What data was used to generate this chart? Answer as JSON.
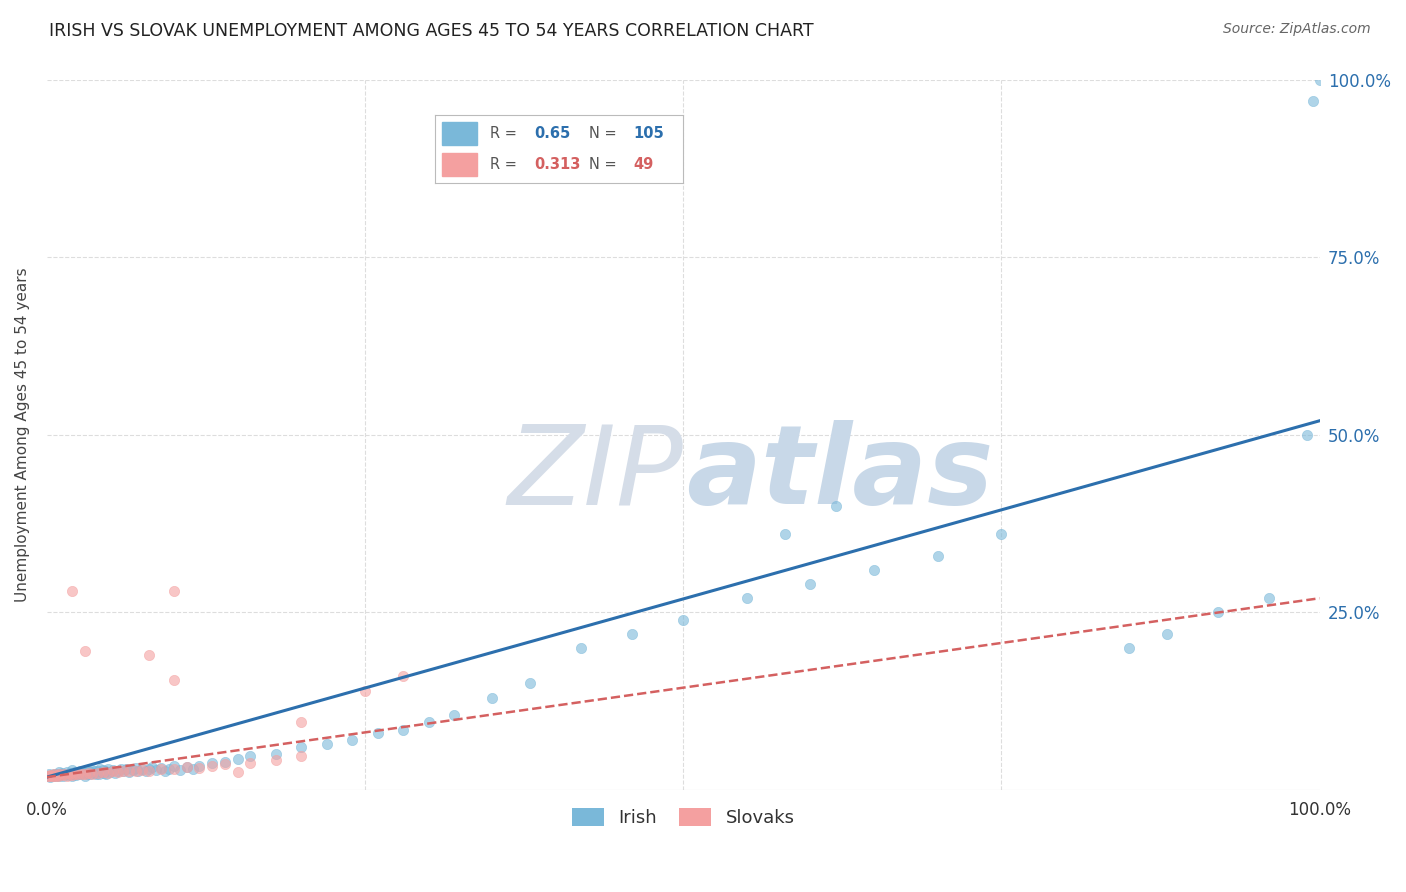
{
  "title": "IRISH VS SLOVAK UNEMPLOYMENT AMONG AGES 45 TO 54 YEARS CORRELATION CHART",
  "source": "Source: ZipAtlas.com",
  "ylabel": "Unemployment Among Ages 45 to 54 years",
  "irish_R": 0.65,
  "irish_N": 105,
  "slovak_R": 0.313,
  "slovak_N": 49,
  "irish_color": "#7ab8d9",
  "slovak_color": "#f4a0a0",
  "irish_line_color": "#2c6fad",
  "slovak_line_color": "#d46060",
  "background_color": "#ffffff",
  "grid_color": "#dddddd",
  "watermark_zip_color": "#d5dde8",
  "watermark_atlas_color": "#c8d8e8",
  "xlim": [
    0,
    1
  ],
  "ylim": [
    0,
    1
  ],
  "irish_line_x0": 0.0,
  "irish_line_y0": 0.018,
  "irish_line_x1": 1.0,
  "irish_line_y1": 0.52,
  "slovak_line_x0": 0.0,
  "slovak_line_y0": 0.018,
  "slovak_line_x1": 1.0,
  "slovak_line_y1": 0.27,
  "irish_scatter_x": [
    0.001,
    0.002,
    0.003,
    0.004,
    0.005,
    0.006,
    0.007,
    0.008,
    0.009,
    0.01,
    0.01,
    0.011,
    0.012,
    0.013,
    0.014,
    0.015,
    0.016,
    0.017,
    0.018,
    0.019,
    0.02,
    0.02,
    0.021,
    0.022,
    0.023,
    0.024,
    0.025,
    0.026,
    0.027,
    0.028,
    0.029,
    0.03,
    0.031,
    0.032,
    0.033,
    0.034,
    0.035,
    0.036,
    0.037,
    0.038,
    0.039,
    0.04,
    0.041,
    0.042,
    0.043,
    0.044,
    0.045,
    0.046,
    0.047,
    0.048,
    0.05,
    0.052,
    0.054,
    0.056,
    0.058,
    0.06,
    0.062,
    0.065,
    0.068,
    0.07,
    0.072,
    0.075,
    0.078,
    0.08,
    0.083,
    0.086,
    0.09,
    0.093,
    0.096,
    0.1,
    0.105,
    0.11,
    0.115,
    0.12,
    0.13,
    0.14,
    0.15,
    0.16,
    0.18,
    0.2,
    0.22,
    0.24,
    0.26,
    0.28,
    0.3,
    0.32,
    0.35,
    0.38,
    0.42,
    0.46,
    0.5,
    0.55,
    0.6,
    0.65,
    0.7,
    0.75,
    0.58,
    0.62,
    0.85,
    0.88,
    0.92,
    0.96,
    0.99,
    0.995,
    1.0
  ],
  "irish_scatter_y": [
    0.02,
    0.022,
    0.018,
    0.021,
    0.019,
    0.023,
    0.02,
    0.022,
    0.021,
    0.02,
    0.025,
    0.022,
    0.024,
    0.02,
    0.023,
    0.022,
    0.025,
    0.021,
    0.024,
    0.023,
    0.02,
    0.028,
    0.022,
    0.025,
    0.021,
    0.024,
    0.023,
    0.026,
    0.022,
    0.025,
    0.024,
    0.02,
    0.027,
    0.023,
    0.026,
    0.022,
    0.025,
    0.028,
    0.024,
    0.027,
    0.023,
    0.026,
    0.022,
    0.029,
    0.025,
    0.028,
    0.024,
    0.027,
    0.023,
    0.03,
    0.025,
    0.028,
    0.024,
    0.027,
    0.03,
    0.026,
    0.029,
    0.025,
    0.028,
    0.031,
    0.027,
    0.03,
    0.026,
    0.029,
    0.032,
    0.028,
    0.031,
    0.027,
    0.03,
    0.033,
    0.028,
    0.032,
    0.03,
    0.033,
    0.038,
    0.04,
    0.043,
    0.048,
    0.05,
    0.06,
    0.065,
    0.07,
    0.08,
    0.085,
    0.095,
    0.105,
    0.13,
    0.15,
    0.2,
    0.22,
    0.24,
    0.27,
    0.29,
    0.31,
    0.33,
    0.36,
    0.36,
    0.4,
    0.2,
    0.22,
    0.25,
    0.27,
    0.5,
    0.97,
    1.0
  ],
  "slovak_scatter_x": [
    0.001,
    0.002,
    0.003,
    0.004,
    0.005,
    0.006,
    0.007,
    0.008,
    0.009,
    0.01,
    0.012,
    0.014,
    0.016,
    0.018,
    0.02,
    0.022,
    0.025,
    0.028,
    0.03,
    0.033,
    0.036,
    0.04,
    0.044,
    0.048,
    0.052,
    0.056,
    0.06,
    0.065,
    0.07,
    0.075,
    0.08,
    0.09,
    0.1,
    0.11,
    0.12,
    0.13,
    0.14,
    0.16,
    0.18,
    0.2,
    0.08,
    0.1,
    0.15,
    0.2,
    0.25,
    0.28,
    0.02,
    0.03,
    0.1
  ],
  "slovak_scatter_y": [
    0.02,
    0.019,
    0.021,
    0.02,
    0.019,
    0.022,
    0.02,
    0.021,
    0.02,
    0.022,
    0.021,
    0.022,
    0.02,
    0.023,
    0.021,
    0.022,
    0.023,
    0.022,
    0.023,
    0.024,
    0.023,
    0.024,
    0.025,
    0.024,
    0.026,
    0.025,
    0.026,
    0.027,
    0.026,
    0.028,
    0.027,
    0.029,
    0.03,
    0.032,
    0.031,
    0.034,
    0.036,
    0.038,
    0.042,
    0.048,
    0.19,
    0.155,
    0.025,
    0.095,
    0.14,
    0.16,
    0.28,
    0.195,
    0.28
  ]
}
